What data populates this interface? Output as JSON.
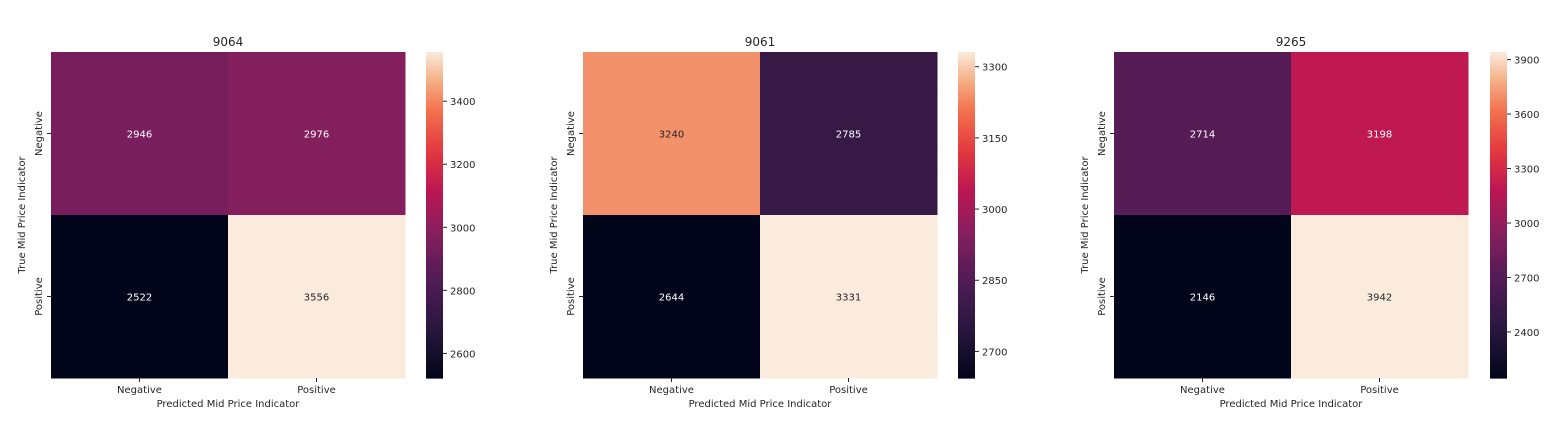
{
  "chart_data": [
    {
      "type": "heatmap",
      "title": "9064",
      "xlabel": "Predicted Mid Price Indicator",
      "ylabel": "True Mid Price Indicator",
      "x_categories": [
        "Negative",
        "Positive"
      ],
      "y_categories": [
        "Negative",
        "Positive"
      ],
      "values": [
        [
          2946,
          2976
        ],
        [
          2522,
          3556
        ]
      ],
      "colorbar": {
        "min": 2522,
        "max": 3556,
        "ticks": [
          2600,
          2800,
          3000,
          3200,
          3400
        ]
      },
      "colormap": "rocket"
    },
    {
      "type": "heatmap",
      "title": "9061",
      "xlabel": "Predicted Mid Price Indicator",
      "ylabel": "True Mid Price Indicator",
      "x_categories": [
        "Negative",
        "Positive"
      ],
      "y_categories": [
        "Negative",
        "Positive"
      ],
      "values": [
        [
          3240,
          2785
        ],
        [
          2644,
          3331
        ]
      ],
      "colorbar": {
        "min": 2644,
        "max": 3331,
        "ticks": [
          2700,
          2850,
          3000,
          3150,
          3300
        ]
      },
      "colormap": "rocket"
    },
    {
      "type": "heatmap",
      "title": "9265",
      "xlabel": "Predicted Mid Price Indicator",
      "ylabel": "True Mid Price Indicator",
      "x_categories": [
        "Negative",
        "Positive"
      ],
      "y_categories": [
        "Negative",
        "Positive"
      ],
      "values": [
        [
          2714,
          3198
        ],
        [
          2146,
          3942
        ]
      ],
      "colorbar": {
        "min": 2146,
        "max": 3942,
        "ticks": [
          2400,
          2700,
          3000,
          3300,
          3600,
          3900
        ]
      },
      "colormap": "rocket"
    }
  ],
  "colors": {
    "low_text": "#ffffff",
    "high_text": "#262626",
    "axis_text": "#262626"
  }
}
